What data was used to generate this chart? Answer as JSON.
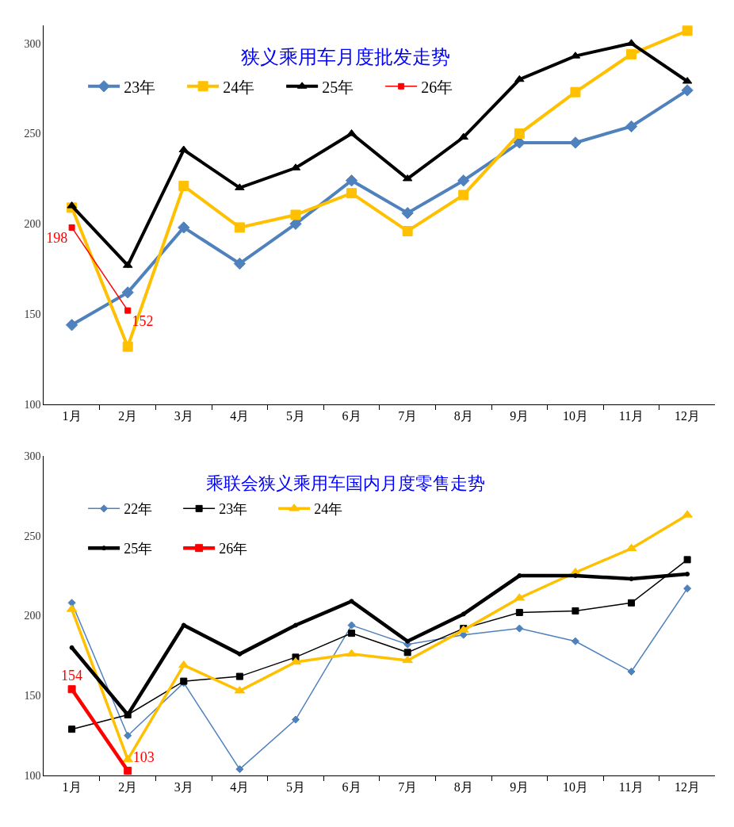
{
  "chart_data": [
    {
      "type": "line",
      "title": "狭义乘用车月度批发走势",
      "categories": [
        "1月",
        "2月",
        "3月",
        "4月",
        "5月",
        "6月",
        "7月",
        "8月",
        "9月",
        "10月",
        "11月",
        "12月"
      ],
      "ylim": [
        100,
        310
      ],
      "yticks": [
        100,
        150,
        200,
        250,
        300
      ],
      "legend": "top left",
      "series": [
        {
          "name": "23年",
          "color": "#4f81bd",
          "marker": "diamond",
          "values": [
            144,
            162,
            198,
            178,
            200,
            224,
            206,
            224,
            245,
            245,
            254,
            274
          ]
        },
        {
          "name": "24年",
          "color": "#ffc000",
          "marker": "square",
          "values": [
            209,
            132,
            221,
            198,
            205,
            217,
            196,
            216,
            250,
            273,
            294,
            307
          ]
        },
        {
          "name": "25年",
          "color": "#000000",
          "marker": "triangle",
          "values": [
            210,
            177,
            241,
            220,
            231,
            250,
            225,
            248,
            280,
            293,
            300,
            279
          ]
        },
        {
          "name": "26年",
          "color": "#ff0000",
          "marker": "square",
          "values": [
            198,
            152,
            null,
            null,
            null,
            null,
            null,
            null,
            null,
            null,
            null,
            null
          ],
          "value_labels": [
            "198",
            "152",
            null,
            null,
            null,
            null,
            null,
            null,
            null,
            null,
            null,
            null
          ]
        }
      ]
    },
    {
      "type": "line",
      "title": "乘联会狭义乘用车国内月度零售走势",
      "categories": [
        "1月",
        "2月",
        "3月",
        "4月",
        "5月",
        "6月",
        "7月",
        "8月",
        "9月",
        "10月",
        "11月",
        "12月"
      ],
      "ylim": [
        100,
        300
      ],
      "yticks": [
        100,
        150,
        200,
        250,
        300
      ],
      "legend": "top left",
      "series": [
        {
          "name": "22年",
          "color": "#4f81bd",
          "marker": "diamond",
          "values": [
            208,
            125,
            158,
            104,
            135,
            194,
            182,
            188,
            192,
            184,
            165,
            217
          ]
        },
        {
          "name": "23年",
          "color": "#000000",
          "marker": "square",
          "values": [
            129,
            138,
            159,
            162,
            174,
            189,
            177,
            192,
            202,
            203,
            208,
            235
          ]
        },
        {
          "name": "24年",
          "color": "#ffc000",
          "marker": "triangle",
          "values": [
            204,
            110,
            169,
            153,
            171,
            176,
            172,
            191,
            211,
            227,
            242,
            263
          ]
        },
        {
          "name": "25年",
          "color": "#000000",
          "marker": "circle",
          "values": [
            180,
            138,
            194,
            176,
            194,
            209,
            184,
            201,
            225,
            225,
            223,
            226
          ]
        },
        {
          "name": "26年",
          "color": "#ff0000",
          "marker": "square",
          "values": [
            154,
            103,
            null,
            null,
            null,
            null,
            null,
            null,
            null,
            null,
            null,
            null
          ],
          "value_labels": [
            "154",
            "103",
            null,
            null,
            null,
            null,
            null,
            null,
            null,
            null,
            null,
            null
          ]
        }
      ]
    }
  ]
}
